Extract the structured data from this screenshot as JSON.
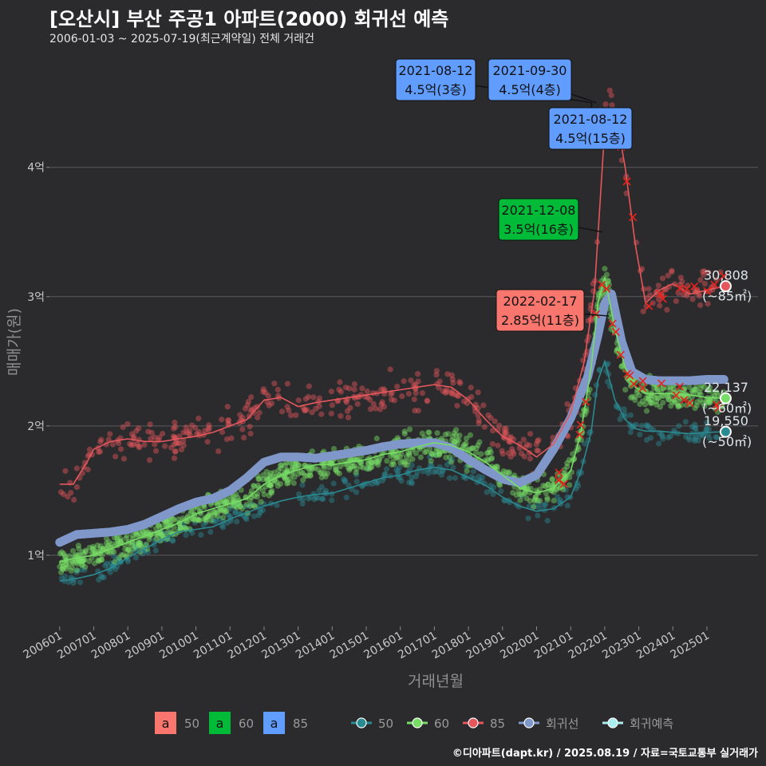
{
  "title": "[오산시] 부산 주공1 아파트(2000) 회귀선 예측",
  "subtitle": "2006-01-03 ~ 2025-07-19(최근계약일) 전체 거래건",
  "caption": "©디아파트(dapt.kr) / 2025.08.19 / 자료=국토교통부 실거래가",
  "colors": {
    "background": "#2b2b2d",
    "grid": "#5a5a5c",
    "s50": "#2a8a92",
    "s60": "#77dd66",
    "s85": "#e5575c",
    "regression": "#7f97c9",
    "forecast": "#a8ecec",
    "cross": "#e8231c",
    "label_red": "#f8766d",
    "label_green": "#00ba38",
    "label_blue": "#619cff"
  },
  "chart_data": {
    "type": "scatter",
    "xlabel": "거래년월",
    "ylabel": "매매가(원)",
    "xlim": [
      2005.7,
      2026.5
    ],
    "ylim": [
      0.45,
      4.85
    ],
    "x_ticks": [
      "200601",
      "200701",
      "200801",
      "200901",
      "201001",
      "201101",
      "201201",
      "201301",
      "201401",
      "201501",
      "201601",
      "201701",
      "201801",
      "201901",
      "202001",
      "202101",
      "202201",
      "202301",
      "202401",
      "202501"
    ],
    "y_ticks": [
      {
        "value": 1,
        "label": "1억"
      },
      {
        "value": 2,
        "label": "2억"
      },
      {
        "value": 3,
        "label": "3억"
      },
      {
        "value": 4,
        "label": "4억"
      }
    ],
    "series": [
      {
        "name": "50",
        "key": "s50",
        "x": [
          2006.0,
          2006.5,
          2007.0,
          2007.5,
          2008.0,
          2008.5,
          2009.0,
          2009.5,
          2010.0,
          2010.5,
          2011.0,
          2011.5,
          2012.0,
          2012.5,
          2013.0,
          2013.5,
          2014.0,
          2014.5,
          2015.0,
          2015.5,
          2016.0,
          2016.5,
          2017.0,
          2017.5,
          2018.0,
          2018.5,
          2019.0,
          2019.5,
          2020.0,
          2020.5,
          2021.0,
          2021.3,
          2021.6,
          2021.8,
          2022.0,
          2022.3,
          2022.6,
          2022.9,
          2023.2,
          2023.6,
          2024.0,
          2024.5,
          2025.0,
          2025.5
        ],
        "y": [
          0.8,
          0.82,
          0.85,
          0.9,
          0.98,
          1.05,
          1.12,
          1.18,
          1.2,
          1.22,
          1.28,
          1.33,
          1.38,
          1.42,
          1.45,
          1.47,
          1.48,
          1.52,
          1.56,
          1.6,
          1.62,
          1.66,
          1.68,
          1.66,
          1.6,
          1.54,
          1.45,
          1.38,
          1.34,
          1.36,
          1.45,
          1.65,
          1.95,
          2.35,
          2.5,
          2.2,
          2.05,
          1.98,
          1.96,
          1.96,
          1.95,
          1.94,
          1.95,
          1.955
        ]
      },
      {
        "name": "60",
        "key": "s60",
        "x": [
          2006.0,
          2006.5,
          2007.0,
          2007.5,
          2008.0,
          2008.5,
          2009.0,
          2009.5,
          2010.0,
          2010.5,
          2011.0,
          2011.5,
          2012.0,
          2012.5,
          2013.0,
          2013.5,
          2014.0,
          2014.5,
          2015.0,
          2015.5,
          2016.0,
          2016.5,
          2017.0,
          2017.5,
          2018.0,
          2018.5,
          2019.0,
          2019.5,
          2020.0,
          2020.5,
          2021.0,
          2021.3,
          2021.6,
          2021.8,
          2022.0,
          2022.3,
          2022.6,
          2022.9,
          2023.2,
          2023.6,
          2024.0,
          2024.5,
          2025.0,
          2025.5
        ],
        "y": [
          0.95,
          0.98,
          1.0,
          1.05,
          1.1,
          1.15,
          1.2,
          1.25,
          1.32,
          1.36,
          1.4,
          1.44,
          1.55,
          1.62,
          1.66,
          1.7,
          1.7,
          1.72,
          1.74,
          1.78,
          1.8,
          1.84,
          1.87,
          1.85,
          1.8,
          1.72,
          1.62,
          1.52,
          1.48,
          1.52,
          1.65,
          1.95,
          2.45,
          2.95,
          3.15,
          2.75,
          2.45,
          2.3,
          2.25,
          2.25,
          2.25,
          2.24,
          2.22,
          2.214
        ]
      },
      {
        "name": "85",
        "key": "s85",
        "x": [
          2006.0,
          2006.4,
          2006.8,
          2007.0,
          2007.5,
          2008.0,
          2008.5,
          2009.0,
          2009.5,
          2010.0,
          2010.5,
          2011.0,
          2011.5,
          2012.0,
          2012.5,
          2013.0,
          2013.5,
          2014.0,
          2014.5,
          2015.0,
          2015.5,
          2016.0,
          2016.5,
          2017.0,
          2017.5,
          2018.0,
          2018.5,
          2019.0,
          2019.5,
          2020.0,
          2020.5,
          2021.0,
          2021.4,
          2021.7,
          2022.0,
          2022.3,
          2022.6,
          2022.9,
          2023.2,
          2023.6,
          2024.0,
          2024.5,
          2025.0,
          2025.5
        ],
        "y": [
          1.55,
          1.55,
          1.72,
          1.82,
          1.88,
          1.9,
          1.88,
          1.88,
          1.9,
          1.92,
          1.95,
          2.0,
          2.05,
          2.2,
          2.22,
          2.15,
          2.18,
          2.2,
          2.22,
          2.24,
          2.26,
          2.28,
          2.3,
          2.32,
          2.3,
          2.2,
          2.05,
          1.92,
          1.85,
          1.76,
          1.86,
          2.1,
          2.5,
          3.05,
          4.3,
          4.45,
          4.0,
          3.4,
          2.95,
          3.05,
          3.1,
          3.02,
          3.05,
          3.081
        ]
      },
      {
        "name": "회귀선",
        "key": "regression",
        "x": [
          2006.0,
          2006.5,
          2007.0,
          2007.5,
          2008.0,
          2008.5,
          2009.0,
          2009.5,
          2010.0,
          2010.5,
          2011.0,
          2011.5,
          2012.0,
          2012.5,
          2013.0,
          2013.5,
          2014.0,
          2014.5,
          2015.0,
          2015.5,
          2016.0,
          2016.5,
          2017.0,
          2017.5,
          2018.0,
          2018.5,
          2019.0,
          2019.5,
          2020.0,
          2020.5,
          2021.0,
          2021.5,
          2021.8,
          2022.0,
          2022.2,
          2022.5,
          2022.8,
          2023.2,
          2023.6,
          2024.0,
          2024.5,
          2025.0,
          2025.5
        ],
        "y": [
          1.1,
          1.16,
          1.17,
          1.18,
          1.2,
          1.24,
          1.3,
          1.36,
          1.41,
          1.44,
          1.5,
          1.6,
          1.72,
          1.76,
          1.76,
          1.75,
          1.77,
          1.79,
          1.81,
          1.84,
          1.86,
          1.87,
          1.87,
          1.83,
          1.74,
          1.66,
          1.59,
          1.56,
          1.62,
          1.82,
          2.06,
          2.38,
          2.7,
          2.95,
          3.02,
          2.65,
          2.42,
          2.36,
          2.35,
          2.35,
          2.35,
          2.36,
          2.36
        ]
      }
    ],
    "markers": [
      {
        "x": 2021.62,
        "y": 4.5,
        "label": [
          "2021-08-12",
          "4.5억(3층)"
        ]
      },
      {
        "x": 2021.75,
        "y": 4.5,
        "label": [
          "2021-09-30",
          "4.5억(4층)"
        ]
      },
      {
        "x": 2021.62,
        "y": 4.5,
        "label": [
          "2021-08-12",
          "4.5억(15층)"
        ]
      },
      {
        "x": 2021.93,
        "y": 3.5,
        "label": [
          "2021-12-08",
          "3.5억(16층)"
        ]
      },
      {
        "x": 2022.13,
        "y": 2.85,
        "label": [
          "2022-02-17",
          "2.85억(11층)"
        ]
      }
    ],
    "end_labels": [
      {
        "key": "s85",
        "y": 3.081,
        "value": "30,808",
        "unit": "(~85㎡)"
      },
      {
        "key": "s60",
        "y": 2.214,
        "value": "22,137",
        "unit": "(~60㎡)"
      },
      {
        "key": "s50",
        "y": 1.955,
        "value": "19,550",
        "unit": "(~50㎡)"
      }
    ],
    "legend": {
      "placement": "bottom",
      "fill_items": [
        {
          "swatch": "a",
          "label": "50",
          "color": "#f8766d"
        },
        {
          "swatch": "a",
          "label": "60",
          "color": "#00ba38"
        },
        {
          "swatch": "a",
          "label": "85",
          "color": "#619cff"
        }
      ],
      "line_items": [
        {
          "label": "50",
          "color": "#2a8a92"
        },
        {
          "label": "60",
          "color": "#77dd66"
        },
        {
          "label": "85",
          "color": "#e5575c"
        },
        {
          "label": "회귀선",
          "color": "#7f97c9"
        },
        {
          "label": "회귀예측",
          "color": "#a8ecec"
        }
      ]
    }
  }
}
